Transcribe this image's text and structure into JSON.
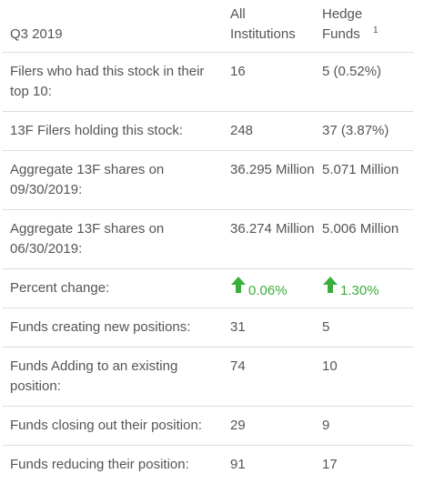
{
  "header": {
    "period": "Q3 2019",
    "col_all": "All Institutions",
    "col_hedge": "Hedge Funds",
    "hedge_footnote": "1"
  },
  "rows": [
    {
      "label": "Filers who had this stock in their top 10:",
      "all": "16",
      "hedge": "5 (0.52%)"
    },
    {
      "label": "13F Filers holding this stock:",
      "all": "248",
      "hedge": "37 (3.87%)"
    },
    {
      "label": "Aggregate 13F shares on 09/30/2019:",
      "all": "36.295 Million",
      "hedge": "5.071 Million"
    },
    {
      "label": "Aggregate 13F shares on 06/30/2019:",
      "all": "36.274 Million",
      "hedge": "5.006 Million"
    },
    {
      "label": "Percent change:",
      "all": "0.06%",
      "hedge": "1.30%",
      "all_direction": "up-arrow-icon",
      "hedge_direction": "up-arrow-icon"
    },
    {
      "label": "Funds creating new positions:",
      "all": "31",
      "hedge": "5"
    },
    {
      "label": "Funds Adding to an existing position:",
      "all": "74",
      "hedge": "10"
    },
    {
      "label": "Funds closing out their position:",
      "all": "29",
      "hedge": "9"
    },
    {
      "label": "Funds reducing their position:",
      "all": "91",
      "hedge": "17"
    }
  ],
  "colors": {
    "text": "#555555",
    "positive": "#3cae3c",
    "divider": "#dddddd"
  }
}
